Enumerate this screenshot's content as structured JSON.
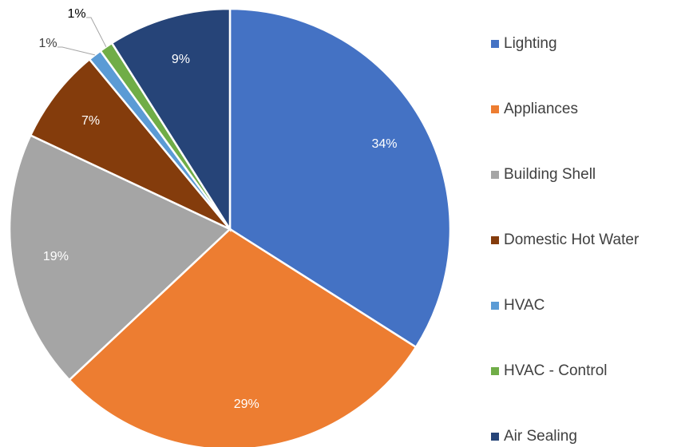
{
  "chart_data": {
    "type": "pie",
    "categories": [
      "Lighting",
      "Appliances",
      "Building Shell",
      "Domestic Hot Water",
      "HVAC",
      "HVAC - Control",
      "Air Sealing"
    ],
    "values": [
      34,
      29,
      19,
      7,
      1,
      1,
      9
    ],
    "value_labels": [
      "34%",
      "29%",
      "19%",
      "7%",
      "1%",
      "1%",
      "9%"
    ],
    "colors": [
      "#4472c4",
      "#ed7d31",
      "#a5a5a5",
      "#843c0c",
      "#5b9bd5",
      "#70ad47",
      "#264478"
    ],
    "legend": "right"
  }
}
